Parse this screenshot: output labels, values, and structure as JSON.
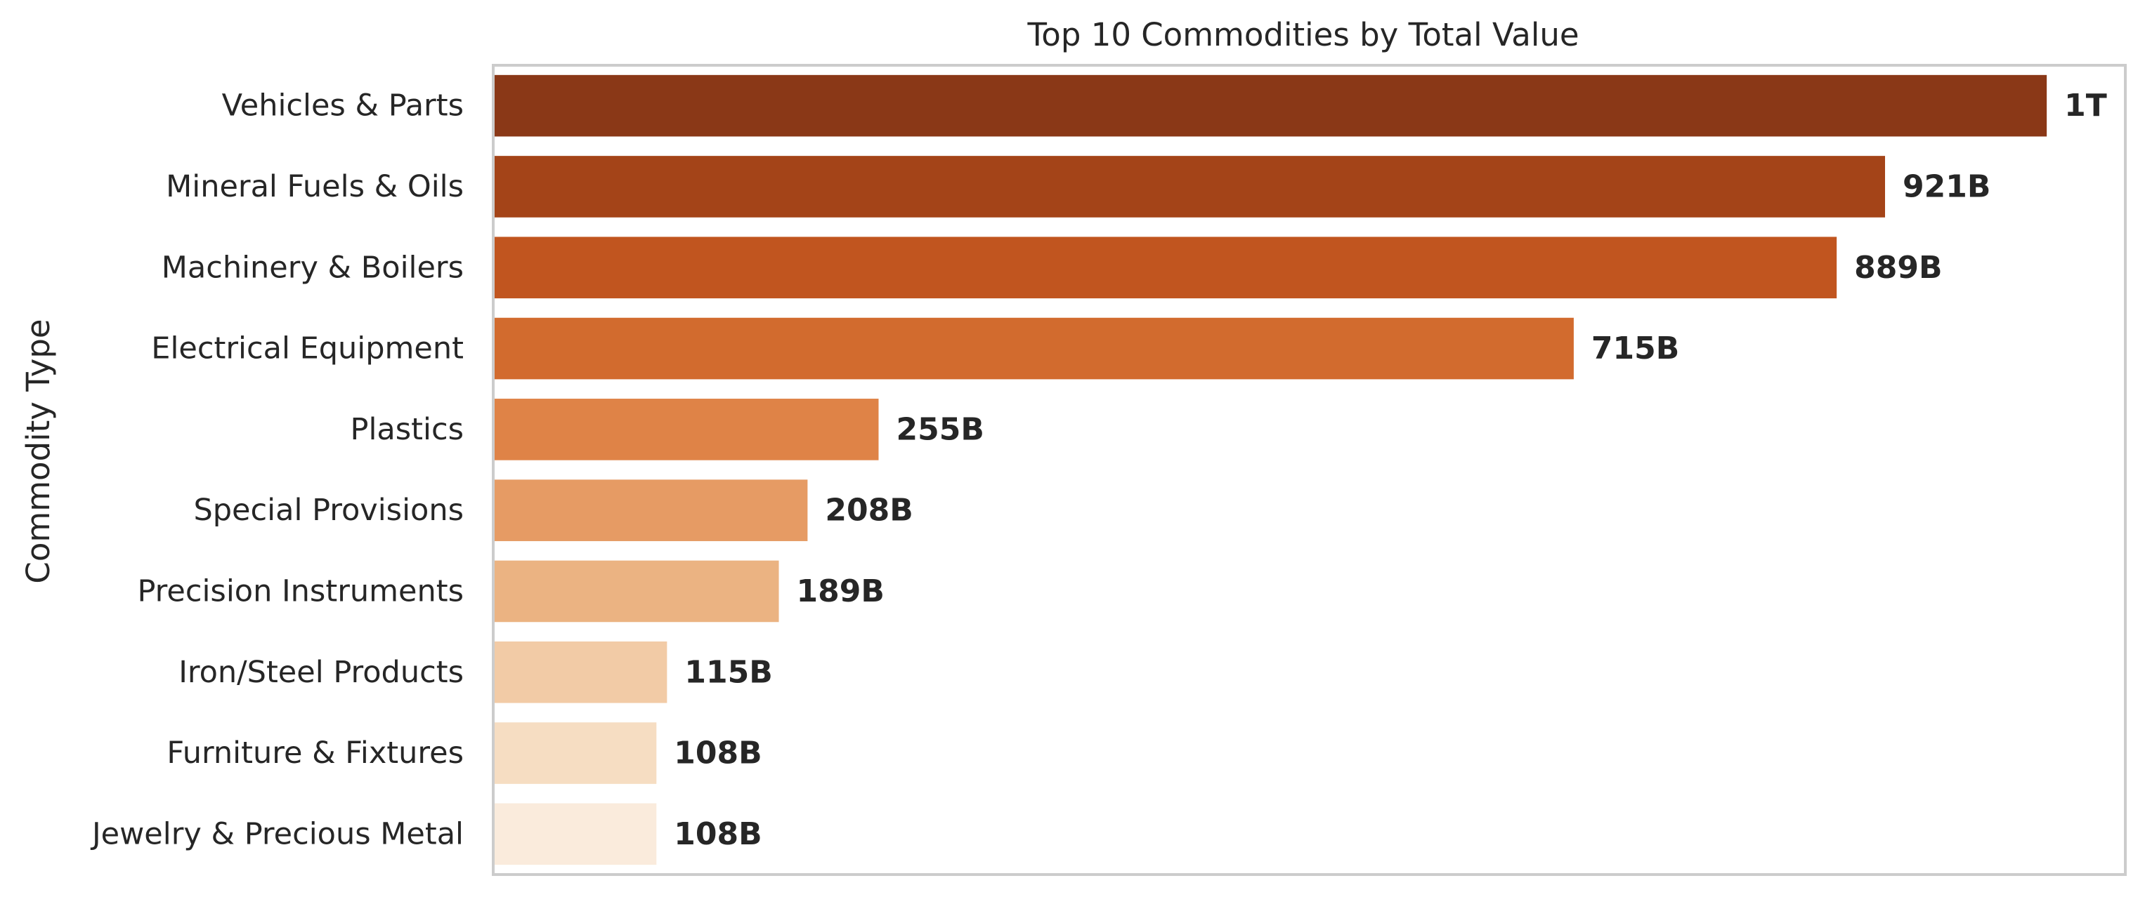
{
  "chart_data": {
    "type": "bar",
    "orientation": "horizontal",
    "title": "Top 10 Commodities by Total Value",
    "xlabel": "",
    "ylabel": "Commodity Type",
    "categories": [
      "Vehicles & Parts",
      "Mineral Fuels & Oils",
      "Machinery & Boilers",
      "Electrical Equipment",
      "Plastics",
      "Special Provisions",
      "Precision Instruments",
      "Iron/Steel Products",
      "Furniture & Fixtures",
      "Jewelry & Precious Metal"
    ],
    "values": [
      1028,
      921,
      889,
      715,
      255,
      208,
      189,
      115,
      108,
      108
    ],
    "value_units": "billions",
    "data_labels": [
      "1T",
      "921B",
      "889B",
      "715B",
      "255B",
      "208B",
      "189B",
      "115B",
      "108B",
      "108B"
    ],
    "xlim": [
      0,
      1080
    ],
    "grid": false,
    "legend": "none",
    "colors": [
      "#8a3817",
      "#a44418",
      "#c1551f",
      "#d26b2e",
      "#df8347",
      "#e69b64",
      "#ebb382",
      "#f2cba6",
      "#f6ddc2",
      "#faebdc"
    ]
  }
}
